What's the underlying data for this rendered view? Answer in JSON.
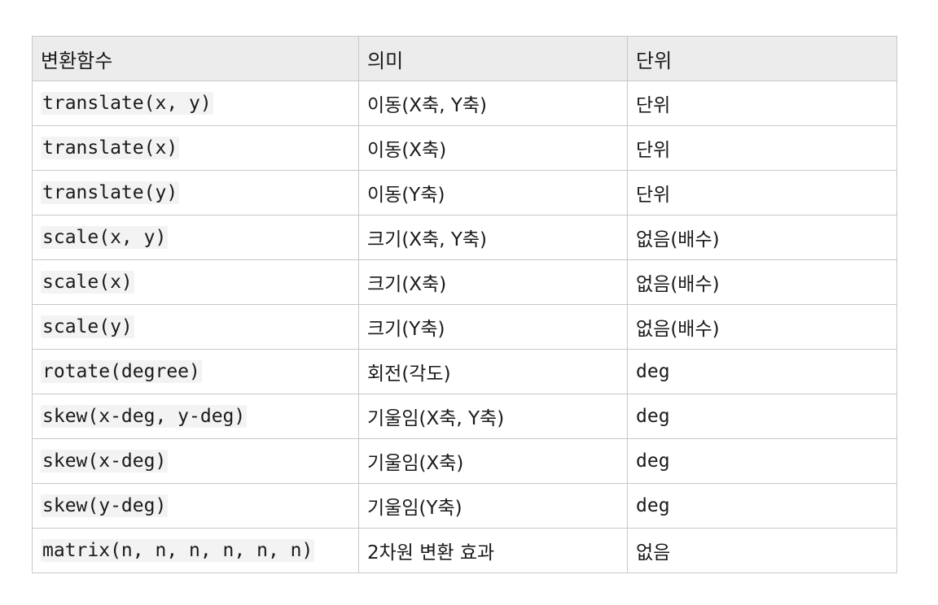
{
  "table": {
    "headers": [
      "변환함수",
      "의미",
      "단위"
    ],
    "rows": [
      {
        "func": "translate(x, y)",
        "meaning": "이동(X축, Y축)",
        "unit": "단위",
        "unit_is_code": false
      },
      {
        "func": "translate(x)",
        "meaning": "이동(X축)",
        "unit": "단위",
        "unit_is_code": false
      },
      {
        "func": "translate(y)",
        "meaning": "이동(Y축)",
        "unit": "단위",
        "unit_is_code": false
      },
      {
        "func": "scale(x, y)",
        "meaning": "크기(X축, Y축)",
        "unit": "없음(배수)",
        "unit_is_code": false
      },
      {
        "func": "scale(x)",
        "meaning": "크기(X축)",
        "unit": "없음(배수)",
        "unit_is_code": false
      },
      {
        "func": "scale(y)",
        "meaning": "크기(Y축)",
        "unit": "없음(배수)",
        "unit_is_code": false
      },
      {
        "func": "rotate(degree)",
        "meaning": "회전(각도)",
        "unit": "deg",
        "unit_is_code": true
      },
      {
        "func": "skew(x-deg, y-deg)",
        "meaning": "기울임(X축, Y축)",
        "unit": "deg",
        "unit_is_code": true
      },
      {
        "func": "skew(x-deg)",
        "meaning": "기울임(X축)",
        "unit": "deg",
        "unit_is_code": true
      },
      {
        "func": "skew(y-deg)",
        "meaning": "기울임(Y축)",
        "unit": "deg",
        "unit_is_code": true
      },
      {
        "func": "matrix(n, n, n, n, n, n)",
        "meaning": "2차원 변환 효과",
        "unit": "없음",
        "unit_is_code": false
      }
    ]
  }
}
